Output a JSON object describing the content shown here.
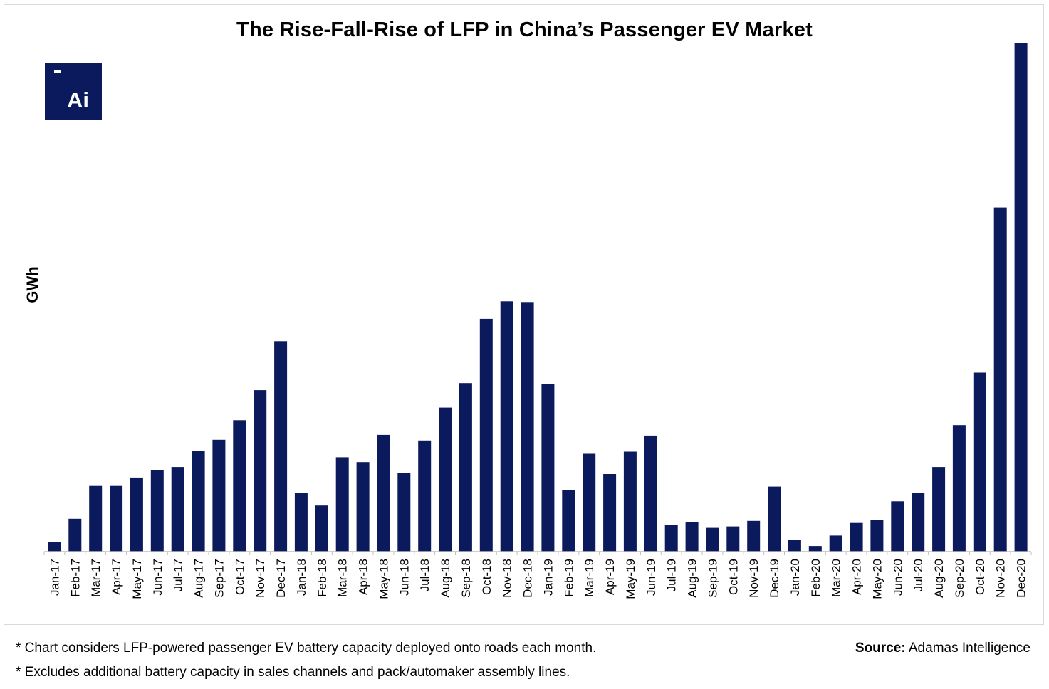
{
  "chart_data": {
    "type": "bar",
    "title": "The Rise-Fall-Rise of LFP in China’s Passenger EV Market",
    "xlabel": "",
    "ylabel": "GWh",
    "categories": [
      "Jan-17",
      "Feb-17",
      "Mar-17",
      "Apr-17",
      "May-17",
      "Jun-17",
      "Jul-17",
      "Aug-17",
      "Sep-17",
      "Oct-17",
      "Nov-17",
      "Dec-17",
      "Jan-18",
      "Feb-18",
      "Mar-18",
      "Apr-18",
      "May-18",
      "Jun-18",
      "Jul-18",
      "Aug-18",
      "Sep-18",
      "Oct-18",
      "Nov-18",
      "Dec-18",
      "Jan-19",
      "Feb-19",
      "Mar-19",
      "Apr-19",
      "May-19",
      "Jun-19",
      "Jul-19",
      "Aug-19",
      "Sep-19",
      "Oct-19",
      "Nov-19",
      "Dec-19",
      "Jan-20",
      "Feb-20",
      "Mar-20",
      "Apr-20",
      "May-20",
      "Jun-20",
      "Jul-20",
      "Aug-20",
      "Sep-20",
      "Oct-20",
      "Nov-20",
      "Dec-20"
    ],
    "values": [
      14,
      47,
      94,
      94,
      106,
      116,
      121,
      144,
      160,
      188,
      231,
      301,
      84,
      66,
      135,
      128,
      167,
      113,
      159,
      206,
      241,
      333,
      358,
      357,
      240,
      88,
      140,
      111,
      143,
      166,
      38,
      42,
      34,
      36,
      44,
      93,
      17,
      8,
      23,
      41,
      45,
      72,
      84,
      121,
      181,
      256,
      492,
      727
    ],
    "ylim": [
      0,
      740
    ],
    "y_ticks_shown": false,
    "grid": false,
    "legend": "none",
    "bar_color": "#0a1a5c"
  },
  "logo": {
    "text": "Ai",
    "background": "#0a1a5c"
  },
  "notes": {
    "note1": "* Chart considers LFP-powered passenger EV battery capacity deployed onto roads each month.",
    "note2": "* Excludes additional battery capacity in sales channels and pack/automaker assembly lines."
  },
  "source": {
    "label": "Source:",
    "text": " Adamas Intelligence"
  }
}
